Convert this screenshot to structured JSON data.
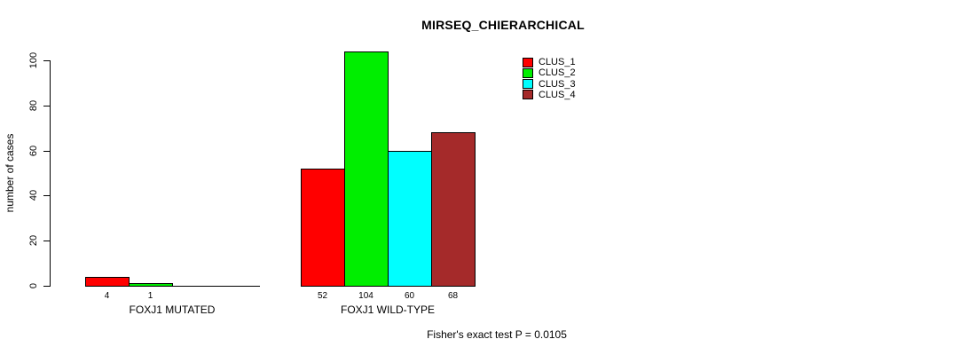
{
  "chart_data": {
    "type": "bar",
    "title": "MIRSEQ_CHIERARCHICAL",
    "ylabel": "number of cases",
    "xlabel": "",
    "ylim": [
      0,
      100
    ],
    "yticks": [
      0,
      20,
      40,
      60,
      80,
      100
    ],
    "grid": false,
    "legend_position": "top-right",
    "palette": [
      "#FF0000",
      "#00EE00",
      "#00FFFF",
      "#A52A2A"
    ],
    "series_names": [
      "CLUS_1",
      "CLUS_2",
      "CLUS_3",
      "CLUS_4"
    ],
    "legend": [
      {
        "label": "CLUS_1",
        "color": "#FF0000"
      },
      {
        "label": "CLUS_2",
        "color": "#00EE00"
      },
      {
        "label": "CLUS_3",
        "color": "#00FFFF"
      },
      {
        "label": "CLUS_4",
        "color": "#A52A2A"
      }
    ],
    "groups": [
      {
        "label": "FOXJ1 MUTATED",
        "values": [
          4,
          1,
          0,
          0
        ]
      },
      {
        "label": "FOXJ1 WILD-TYPE",
        "values": [
          52,
          104,
          60,
          68
        ]
      }
    ],
    "bar_value_labels_shown": [
      "4",
      "1",
      "52",
      "104",
      "60",
      "68"
    ],
    "annotation": "Fisher's exact test P = 0.0105"
  }
}
